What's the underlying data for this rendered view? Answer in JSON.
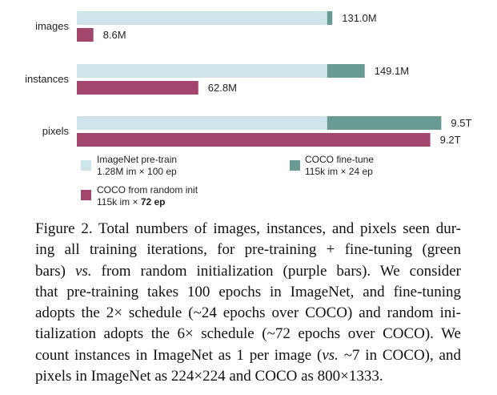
{
  "chart_data": {
    "type": "bar",
    "orientation": "horizontal",
    "stacked_series_group": "pre-training + fine-tuning",
    "categories": [
      "images",
      "instances",
      "pixels"
    ],
    "series": [
      {
        "name": "ImageNet pre-train",
        "detail": "1.28M im × 100 ep",
        "color": "#cde5e8",
        "values_relative": [
          0.5,
          0.5,
          0.5
        ]
      },
      {
        "name": "COCO fine-tune",
        "detail": "115k im × 24 ep",
        "color": "#699b94"
      },
      {
        "name": "COCO from random init",
        "detail_prefix": "115k im × ",
        "detail_bold": "72 ep",
        "color": "#a3466e"
      }
    ],
    "totals": {
      "pretrain_finetune": {
        "labels": [
          "131.0M",
          "149.1M",
          "9.5T"
        ],
        "fraction_of_axis": [
          0.694,
          0.782,
          0.99
        ],
        "pretrain_fraction_of_axis": [
          0.68,
          0.68,
          0.68
        ]
      },
      "random_init": {
        "labels": [
          "8.6M",
          "62.8M",
          "9.2T"
        ],
        "fraction_of_axis": [
          0.045,
          0.33,
          0.96
        ]
      }
    },
    "title": "",
    "xlabel": "",
    "ylabel": "",
    "grid": false,
    "legend_position": "bottom"
  },
  "legend": [
    {
      "name": "legend-imagenet-pretrain",
      "line1": "ImageNet pre-train",
      "line2": "1.28M im × 100 ep",
      "color": "#cde5e8"
    },
    {
      "name": "legend-coco-finetune",
      "line1": "COCO fine-tune",
      "line2": "115k im × 24 ep",
      "color": "#699b94"
    },
    {
      "name": "legend-coco-random-init",
      "line1": "COCO from random init",
      "line2_prefix": "115k im × ",
      "line2_bold": "72 ep",
      "color": "#a3466e"
    }
  ],
  "caption": {
    "lines": [
      "Figure 2. Total numbers of images, instances, and pixels seen dur-",
      "ing all training iterations, for pre-training + fine-tuning (green",
      "bars) |vs.| from random initialization (purple bars).  We consider",
      "that pre-training takes 100 epochs in ImageNet, and fine-tuning",
      "adopts the 2× schedule (~24 epochs over COCO) and random ini-",
      "tialization adopts the 6× schedule (~72 epochs over COCO). We",
      "count instances in ImageNet as 1 per image (|vs.| ~7 in COCO), and",
      "pixels in ImageNet as 224×224 and COCO as 800×1333."
    ]
  }
}
